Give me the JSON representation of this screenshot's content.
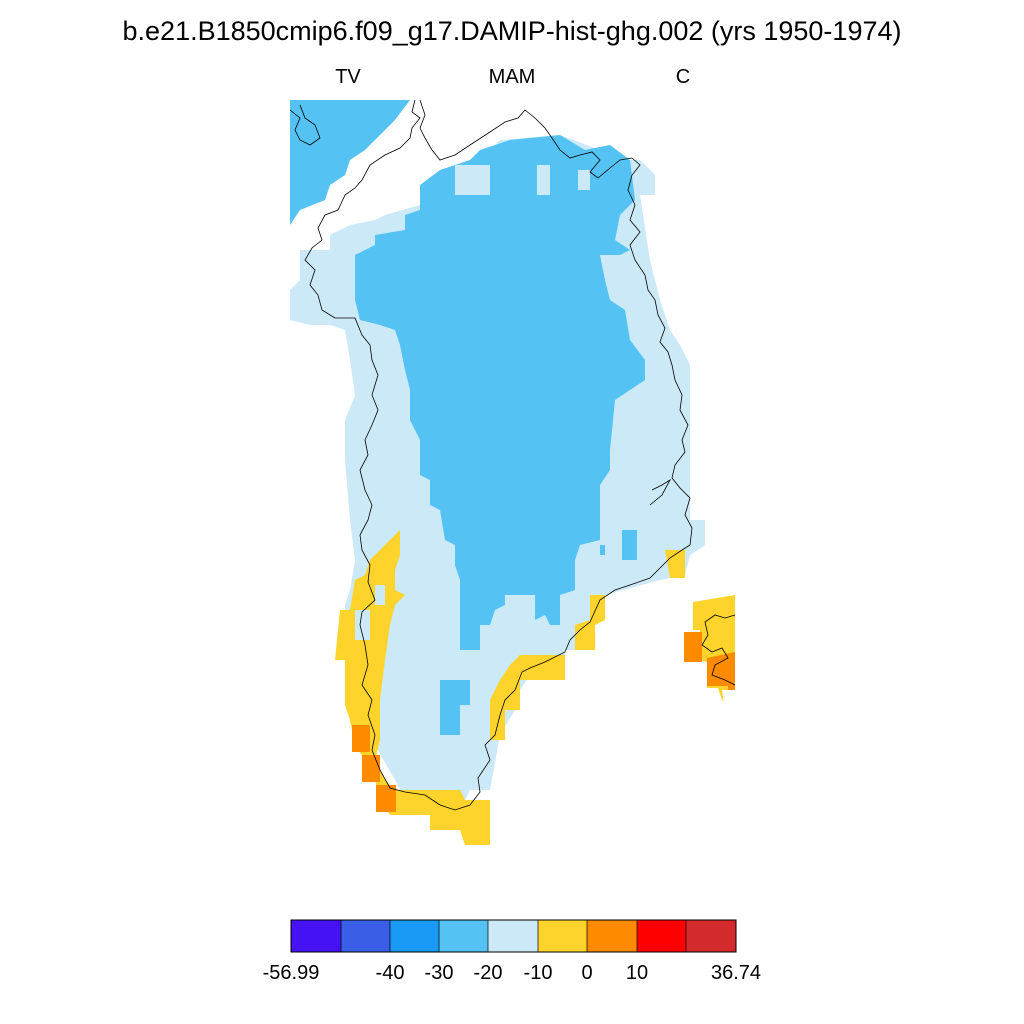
{
  "title": "b.e21.B1850cmip6.f09_g17.DAMIP-hist-ghg.002 (yrs 1950-1974)",
  "subtitles": {
    "left": "TV",
    "center": "MAM",
    "right": "C"
  },
  "colors": {
    "bin_very_dark_blue": "#4412f5",
    "bin_dark_blue": "#3a5ee6",
    "bin_blue": "#1a9af7",
    "bin_mid_blue": "#55c2f4",
    "bin_light_blue": "#cce9f7",
    "bin_yellow": "#fed42c",
    "bin_orange": "#fe8a00",
    "bin_red": "#ff0000",
    "bin_dark_red": "#d32b2b",
    "coastline": "#000000"
  },
  "colorbar": {
    "bins": [
      "#4412f5",
      "#3a5ee6",
      "#1a9af7",
      "#55c2f4",
      "#cce9f7",
      "#fed42c",
      "#fe8a00",
      "#ff0000",
      "#d32b2b"
    ],
    "tick_labels": [
      "-56.99",
      "-40",
      "-30",
      "-20",
      "-10",
      "0",
      "10",
      "36.74"
    ]
  }
}
